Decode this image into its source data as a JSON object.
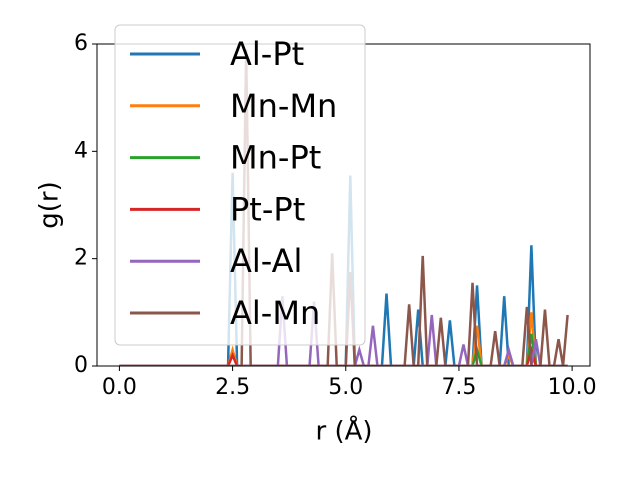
{
  "chart_data": {
    "type": "line",
    "xlabel": "r (Å)",
    "ylabel": "g(r)",
    "x": [
      0,
      0.1,
      0.2,
      0.3,
      0.4,
      0.5,
      0.6,
      0.7,
      0.8,
      0.9,
      1.0,
      1.1,
      1.2,
      1.3,
      1.4,
      1.5,
      1.6,
      1.7,
      1.8,
      1.9,
      2.0,
      2.1,
      2.2,
      2.3,
      2.4,
      2.5,
      2.6,
      2.7,
      2.8,
      2.9,
      3.0,
      3.1,
      3.2,
      3.3,
      3.4,
      3.5,
      3.6,
      3.7,
      3.8,
      3.9,
      4.0,
      4.1,
      4.2,
      4.3,
      4.4,
      4.5,
      4.6,
      4.7,
      4.8,
      4.9,
      5.0,
      5.1,
      5.2,
      5.3,
      5.4,
      5.5,
      5.6,
      5.7,
      5.8,
      5.9,
      6.0,
      6.1,
      6.2,
      6.3,
      6.4,
      6.5,
      6.6,
      6.7,
      6.8,
      6.9,
      7.0,
      7.1,
      7.2,
      7.3,
      7.4,
      7.5,
      7.6,
      7.7,
      7.8,
      7.9,
      8.0,
      8.1,
      8.2,
      8.3,
      8.4,
      8.5,
      8.6,
      8.7,
      8.8,
      8.9,
      9.0,
      9.1,
      9.2,
      9.3,
      9.4,
      9.5,
      9.6,
      9.7,
      9.8,
      9.9
    ],
    "series": [
      {
        "name": "Al-Pt",
        "color": "#1f77b4",
        "values": [
          0,
          0,
          0,
          0,
          0,
          0,
          0,
          0,
          0,
          0,
          0,
          0,
          0,
          0,
          0,
          0,
          0,
          0,
          0,
          0,
          0,
          0,
          0,
          0,
          0,
          3.6,
          0,
          0,
          0,
          0,
          0,
          0,
          0,
          0,
          0,
          0,
          0,
          0,
          0,
          0,
          0,
          0,
          0,
          0,
          0,
          0,
          0,
          0,
          0,
          0,
          0,
          3.55,
          0,
          0,
          0,
          0,
          0,
          0,
          0,
          1.35,
          0,
          0,
          0,
          0,
          0,
          0,
          1.05,
          0,
          0,
          0,
          0,
          0,
          0,
          0.85,
          0,
          0,
          0,
          0,
          0,
          1.5,
          0,
          0,
          0,
          0,
          0,
          1.3,
          0,
          0,
          0,
          0,
          0,
          2.25,
          0,
          0,
          0,
          0,
          0,
          0,
          0,
          0
        ]
      },
      {
        "name": "Mn-Mn",
        "color": "#ff7f0e",
        "values": [
          0,
          0,
          0,
          0,
          0,
          0,
          0,
          0,
          0,
          0,
          0,
          0,
          0,
          0,
          0,
          0,
          0,
          0,
          0,
          0,
          0,
          0,
          0,
          0,
          0,
          0.3,
          0,
          0,
          0,
          0,
          0,
          0,
          0,
          0,
          0,
          0,
          0,
          0,
          0,
          0,
          0,
          0,
          0,
          0,
          0,
          0,
          0,
          0,
          0,
          0,
          0,
          0,
          0,
          0,
          0,
          0,
          0,
          0,
          0,
          0,
          0,
          0,
          0,
          0,
          0,
          0,
          0,
          0,
          0,
          0,
          0,
          0,
          0,
          0,
          0,
          0,
          0,
          0,
          0,
          0.75,
          0,
          0,
          0,
          0,
          0,
          0,
          0.2,
          0,
          0,
          0,
          0,
          1.0,
          0,
          0,
          0,
          0,
          0,
          0,
          0,
          0
        ]
      },
      {
        "name": "Mn-Pt",
        "color": "#2ca02c",
        "values": [
          0,
          0,
          0,
          0,
          0,
          0,
          0,
          0,
          0,
          0,
          0,
          0,
          0,
          0,
          0,
          0,
          0,
          0,
          0,
          0,
          0,
          0,
          0,
          0,
          0,
          0,
          0,
          0,
          0,
          0,
          0,
          0,
          0,
          0,
          0,
          0,
          0,
          0,
          0,
          0,
          0,
          0,
          0,
          0,
          0,
          0,
          0,
          0,
          0,
          0,
          0,
          0,
          0,
          0,
          0,
          0,
          0,
          0,
          0,
          0,
          0,
          0,
          0,
          0,
          0,
          0,
          0,
          0,
          0,
          0,
          0,
          0,
          0,
          0,
          0,
          0,
          0,
          0,
          0,
          0.3,
          0,
          0,
          0,
          0,
          0,
          0,
          0,
          0,
          0,
          0,
          0,
          0.6,
          0,
          0,
          0,
          0,
          0,
          0,
          0,
          0
        ]
      },
      {
        "name": "Pt-Pt",
        "color": "#d62728",
        "values": [
          0,
          0,
          0,
          0,
          0,
          0,
          0,
          0,
          0,
          0,
          0,
          0,
          0,
          0,
          0,
          0,
          0,
          0,
          0,
          0,
          0,
          0,
          0,
          0,
          0,
          0.2,
          0,
          0,
          0,
          0,
          0,
          0,
          0,
          0,
          0,
          0,
          0,
          0,
          0,
          0,
          0,
          0,
          0,
          0,
          0,
          0,
          0,
          0,
          0,
          0,
          0,
          0,
          0,
          0,
          0,
          0,
          0,
          0,
          0,
          0,
          0,
          0,
          0,
          0,
          0,
          0,
          0,
          0,
          0,
          0,
          0,
          0,
          0,
          0,
          0,
          0,
          0,
          0,
          0,
          0,
          0,
          0,
          0,
          0,
          0,
          0,
          0,
          0,
          0,
          0,
          0,
          0.3,
          0,
          0,
          0,
          0,
          0,
          0,
          0,
          0
        ]
      },
      {
        "name": "Al-Al",
        "color": "#9467bd",
        "values": [
          0,
          0,
          0,
          0,
          0,
          0,
          0,
          0,
          0,
          0,
          0,
          0,
          0,
          0,
          0,
          0,
          0,
          0,
          0,
          0,
          0,
          0,
          0,
          0,
          0,
          0,
          0,
          0,
          0,
          0,
          0,
          0,
          0,
          0,
          0,
          0,
          1.3,
          0,
          0,
          0,
          0,
          0,
          0,
          1.2,
          0,
          0,
          0,
          0,
          0,
          0,
          0,
          0,
          0,
          0.3,
          0,
          0,
          0.75,
          0,
          0,
          0,
          0,
          0,
          0,
          0,
          0,
          0,
          0,
          0,
          0,
          0.95,
          0,
          0,
          0,
          0,
          0,
          0,
          0.4,
          0,
          0,
          0,
          0,
          0,
          0,
          0,
          0,
          0,
          0.3,
          0,
          0,
          0,
          0,
          0,
          0.5,
          0,
          0,
          0,
          0,
          0,
          0,
          0
        ]
      },
      {
        "name": "Al-Mn",
        "color": "#8c564b",
        "values": [
          0,
          0,
          0,
          0,
          0,
          0,
          0,
          0,
          0,
          0,
          0,
          0,
          0,
          0,
          0,
          0,
          0,
          0,
          0,
          0,
          0,
          0,
          0,
          0,
          0,
          0,
          0,
          0,
          5.9,
          0,
          0,
          0,
          0,
          0,
          0,
          0,
          0,
          0,
          0,
          0,
          0,
          0,
          0,
          0,
          0,
          0,
          0,
          2.1,
          0,
          0,
          0,
          1.75,
          0,
          0,
          0,
          0,
          0,
          0,
          0,
          0,
          0,
          0,
          0,
          0,
          1.15,
          0,
          0,
          2.05,
          0,
          0,
          0,
          0.9,
          0,
          0,
          0,
          0,
          0,
          0,
          1.55,
          0,
          0,
          0,
          0,
          0.65,
          0,
          0,
          0,
          0,
          0,
          0,
          1.1,
          0,
          0,
          0,
          1.05,
          0,
          0,
          0.5,
          0,
          0.95
        ]
      }
    ],
    "xlim": [
      -0.495,
      10.395
    ],
    "xticks": [
      {
        "value": 0,
        "label": "0.0"
      },
      2.5,
      {
        "value": 5,
        "label": "5.0"
      },
      7.5,
      {
        "value": 10,
        "label": "10.0"
      }
    ],
    "ylim": [
      0,
      6
    ],
    "yticks": [
      0,
      2,
      4,
      6
    ],
    "grid": false,
    "legend": "upper left"
  }
}
